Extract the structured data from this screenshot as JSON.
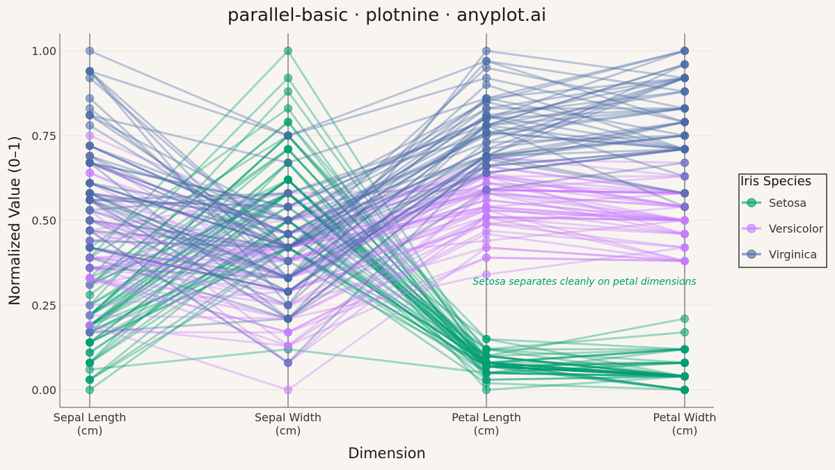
{
  "colors": {
    "background": "#F8F5F0",
    "setosa": "#009E73",
    "versicolor": "#C77CFF",
    "virginica": "#4A6CA8",
    "axis_line": "#888888",
    "grid": "#E8E4DD"
  },
  "chart_data": {
    "type": "parallel-coordinates",
    "title": "parallel-basic · plotnine · anyplot.ai",
    "xlabel": "Dimension",
    "ylabel": "Normalized Value (0–1)",
    "ylim": [
      0,
      1
    ],
    "yticks": [
      "0.00",
      "0.25",
      "0.50",
      "0.75",
      "1.00"
    ],
    "categories": [
      [
        "Sepal Length",
        "(cm)"
      ],
      [
        "Sepal Width",
        "(cm)"
      ],
      [
        "Petal Length",
        "(cm)"
      ],
      [
        "Petal Width",
        "(cm)"
      ]
    ],
    "grid": true,
    "legend": {
      "title": "Iris Species",
      "position": "right"
    },
    "annotation": {
      "text": "Setosa separates cleanly on petal dimensions",
      "x": 2.5,
      "y": 0.31
    },
    "series": [
      {
        "name": "Setosa",
        "data": "0.22,0.62,0.07,0.04;0.17,0.42,0.07,0.04;0.11,0.50,0.05,0.04;0.08,0.46,0.08,0.04;0.19,0.67,0.07,0.04;0.31,0.79,0.12,0.12;0.08,0.58,0.07,0.08;0.19,0.58,0.08,0.04;0.03,0.38,0.07,0.04;0.17,0.46,0.08,0.00;0.31,0.71,0.08,0.04;0.14,0.58,0.10,0.04;0.14,0.42,0.07,0.00;0.00,0.42,0.02,0.00;0.42,0.83,0.03,0.04;0.39,1.00,0.08,0.12;0.31,0.79,0.05,0.12;0.22,0.62,0.07,0.08;0.39,0.75,0.12,0.08;0.22,0.75,0.08,0.08;0.31,0.58,0.12,0.04;0.22,0.71,0.08,0.12;0.08,0.67,0.00,0.04;0.22,0.54,0.12,0.17;0.14,0.58,0.15,0.04;0.19,0.42,0.10,0.04;0.19,0.58,0.10,0.12;0.25,0.62,0.08,0.04;0.25,0.58,0.07,0.04;0.11,0.50,0.10,0.04;0.14,0.46,0.10,0.04;0.31,0.58,0.08,0.12;0.25,0.88,0.08,0.00;0.33,0.92,0.07,0.04;0.17,0.46,0.08,0.00;0.19,0.50,0.03,0.04;0.33,0.62,0.05,0.04;0.17,0.67,0.07,0.00;0.03,0.42,0.05,0.04;0.22,0.58,0.08,0.04;0.19,0.62,0.05,0.08;0.06,0.12,0.05,0.08;0.03,0.50,0.05,0.04;0.19,0.62,0.10,0.21;0.22,0.75,0.15,0.12;0.14,0.42,0.07,0.08;0.22,0.75,0.10,0.04;0.08,0.50,0.07,0.04;0.28,0.71,0.08,0.04;0.19,0.54,0.07,0.04"
      },
      {
        "name": "Versicolor",
        "data": "0.75,0.50,0.63,0.54;0.58,0.50,0.59,0.58;0.72,0.46,0.66,0.58;0.33,0.13,0.51,0.50;0.61,0.33,0.61,0.58;0.39,0.33,0.59,0.50;0.56,0.54,0.63,0.63;0.17,0.17,0.39,0.38;0.64,0.38,0.61,0.50;0.25,0.29,0.49,0.54;0.19,0.00,0.42,0.38;0.44,0.42,0.54,0.58;0.47,0.08,0.51,0.38;0.50,0.38,0.63,0.54;0.36,0.38,0.44,0.50;0.67,0.46,0.58,0.54;0.36,0.42,0.59,0.58;0.42,0.29,0.53,0.38;0.53,0.08,0.59,0.58;0.36,0.21,0.49,0.42;0.44,0.50,0.64,0.71;0.50,0.33,0.51,0.50;0.56,0.21,0.66,0.58;0.50,0.33,0.63,0.46;0.58,0.38,0.56,0.50;0.64,0.42,0.58,0.54;0.69,0.33,0.64,0.54;0.67,0.42,0.68,0.67;0.47,0.38,0.59,0.58;0.39,0.25,0.42,0.38;0.33,0.17,0.47,0.42;0.33,0.17,0.46,0.38;0.42,0.29,0.49,0.46;0.47,0.29,0.69,0.63;0.31,0.42,0.59,0.58;0.47,0.58,0.59,0.63;0.67,0.46,0.63,0.58;0.56,0.13,0.58,0.50;0.36,0.42,0.53,0.50;0.33,0.21,0.51,0.50;0.33,0.25,0.58,0.46;0.50,0.42,0.61,0.54;0.42,0.25,0.51,0.46;0.19,0.13,0.39,0.38;0.36,0.29,0.54,0.50;0.39,0.42,0.54,0.46;0.39,0.38,0.54,0.50;0.53,0.38,0.56,0.50;0.22,0.21,0.34,0.42;0.39,0.33,0.53,0.50"
      },
      {
        "name": "Virginica",
        "data": "0.56,0.54,0.85,1.00;0.42,0.29,0.69,0.75;0.78,0.42,0.83,0.83;0.56,0.38,0.78,0.71;0.61,0.42,0.81,0.88;0.92,0.42,0.95,0.83;0.17,0.21,0.59,0.67;0.83,0.38,0.90,0.71;0.67,0.21,0.81,0.71;0.81,0.67,0.86,1.00;0.61,0.50,0.69,0.79;0.58,0.29,0.73,0.75;0.69,0.42,0.76,0.83;0.39,0.21,0.68,0.79;0.42,0.33,0.69,0.96;0.58,0.50,0.73,0.92;0.61,0.42,0.76,0.71;0.94,0.75,0.97,0.88;0.94,0.25,1.00,0.92;0.47,0.08,0.68,0.58;0.72,0.50,0.80,0.92;0.36,0.33,0.66,0.79;0.94,0.33,0.97,0.79;0.56,0.29,0.66,0.71;0.67,0.54,0.80,0.83;0.81,0.50,0.85,0.71;0.53,0.33,0.64,0.71;0.50,0.42,0.66,0.71;0.58,0.33,0.78,0.83;0.81,0.42,0.81,0.63;0.86,0.33,0.86,0.75;1.00,0.75,0.92,0.79;0.58,0.33,0.78,0.88;0.56,0.33,0.69,0.58;0.50,0.25,0.78,0.54;0.94,0.42,0.86,0.92;0.56,0.58,0.78,0.96;0.58,0.46,0.76,0.71;0.47,0.42,0.64,0.71;0.72,0.46,0.75,0.83;0.67,0.46,0.78,0.96;0.72,0.46,0.69,0.92;0.42,0.29,0.69,0.75;0.69,0.50,0.83,0.92;0.67,0.54,0.80,1.00;0.67,0.42,0.71,0.92;0.56,0.21,0.68,0.75;0.61,0.42,0.71,0.79;0.53,0.58,0.75,0.92;0.44,0.42,0.69,0.71"
      }
    ]
  }
}
